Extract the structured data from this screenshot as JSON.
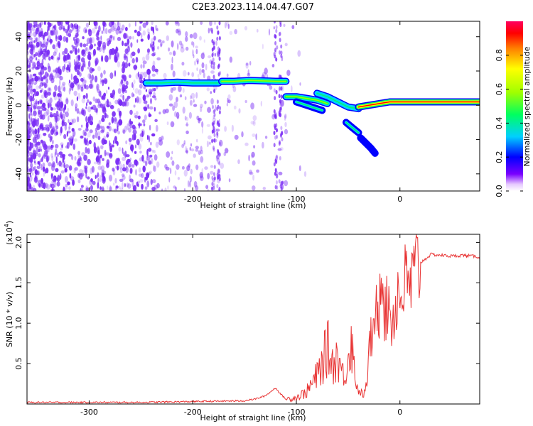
{
  "title": "C2E3.2023.114.04.47.G07",
  "colors": {
    "snr_line": "#e83232",
    "spectrum_noise": "#7a2cf5",
    "colorbar": [
      "#ffffff",
      "#e6c8ff",
      "#7a00ff",
      "#0000ff",
      "#00d0ff",
      "#00ff60",
      "#a0ff00",
      "#ffff00",
      "#ff8000",
      "#ff0000",
      "#ff0060"
    ]
  },
  "chart_data": [
    {
      "type": "heatmap",
      "title": "C2E3.2023.114.04.47.G07",
      "xlabel": "Height of straight line (km)",
      "ylabel": "Frequency (Hz)",
      "xlim": [
        -360,
        77
      ],
      "ylim": [
        -50,
        49
      ],
      "xticks": [
        -300,
        -200,
        -100,
        0
      ],
      "yticks": [
        -40,
        -20,
        0,
        20,
        40
      ],
      "colorbar": {
        "label": "Normalized spectral amplitude",
        "range": [
          0.0,
          1.0
        ],
        "ticks": [
          0.0,
          0.2,
          0.4,
          0.6,
          0.8
        ]
      },
      "ridges": [
        {
          "x": [
            -245,
            -230,
            -215,
            -200,
            -185,
            -175
          ],
          "y": [
            13,
            13,
            13.5,
            13,
            13,
            13
          ],
          "amplitude": 0.45
        },
        {
          "x": [
            -172,
            -160,
            -145,
            -130,
            -120,
            -110
          ],
          "y": [
            14,
            14,
            14.5,
            14.2,
            14,
            14
          ],
          "amplitude": 0.55
        },
        {
          "x": [
            -110,
            -100,
            -90,
            -80,
            -70
          ],
          "y": [
            5,
            5,
            4,
            3,
            1
          ],
          "amplitude": 0.5
        },
        {
          "x": [
            -100,
            -90,
            -80,
            -75
          ],
          "y": [
            2,
            0,
            -2,
            -3
          ],
          "amplitude": 0.4
        },
        {
          "x": [
            -80,
            -70,
            -60,
            -50,
            -40
          ],
          "y": [
            7,
            5,
            2,
            -1,
            -2
          ],
          "amplitude": 0.45
        },
        {
          "x": [
            -40,
            -30,
            -20,
            -10,
            0,
            20,
            40,
            60,
            77
          ],
          "y": [
            -1,
            0,
            1,
            2,
            2,
            2,
            2,
            2,
            2
          ],
          "amplitude": 0.85
        },
        {
          "x": [
            -52,
            -48,
            -44,
            -40
          ],
          "y": [
            -10,
            -12,
            -14,
            -16
          ],
          "amplitude": 0.35
        },
        {
          "x": [
            -38,
            -33,
            -28,
            -24
          ],
          "y": [
            -19,
            -22,
            -25,
            -28
          ],
          "amplitude": 0.15
        }
      ]
    },
    {
      "type": "line",
      "xlabel": "Height of straight line (km)",
      "ylabel": "SNR (10 * v/v)",
      "y_multiplier": "(x10^4)",
      "y_multiplier_base": "(x10",
      "y_multiplier_exp": "4",
      "y_multiplier_close": ")",
      "xlim": [
        -360,
        77
      ],
      "ylim": [
        0,
        2.1
      ],
      "xticks": [
        -300,
        -200,
        -100,
        0
      ],
      "yticks": [
        0.5,
        1.0,
        1.5,
        2.0
      ],
      "series": [
        {
          "x": [
            -360,
            -300,
            -250,
            -200,
            -150,
            -140,
            -130,
            -120,
            -115,
            -110,
            -100,
            -90,
            -80,
            -75,
            -70,
            -65,
            -60,
            -55,
            -50,
            -47,
            -45,
            -42,
            -40,
            -38,
            -35,
            -32,
            -30,
            -28,
            -25,
            -22,
            -20,
            -18,
            -15,
            -12,
            -10,
            -8,
            -5,
            -2,
            0,
            5,
            10,
            15,
            20,
            25,
            30,
            40,
            50,
            60,
            70,
            77
          ],
          "y": [
            0.02,
            0.02,
            0.02,
            0.03,
            0.04,
            0.06,
            0.1,
            0.2,
            0.12,
            0.06,
            0.08,
            0.15,
            0.35,
            0.5,
            0.7,
            0.5,
            0.6,
            0.35,
            0.55,
            0.9,
            0.5,
            0.3,
            0.15,
            0.15,
            0.1,
            0.25,
            0.6,
            0.85,
            0.8,
            1.3,
            1.1,
            2.1,
            1.1,
            1.2,
            1.3,
            1.0,
            1.15,
            1.4,
            1.3,
            1.5,
            1.45,
            1.65,
            1.75,
            1.8,
            1.85,
            1.84,
            1.83,
            1.84,
            1.83,
            1.82
          ]
        }
      ]
    }
  ]
}
